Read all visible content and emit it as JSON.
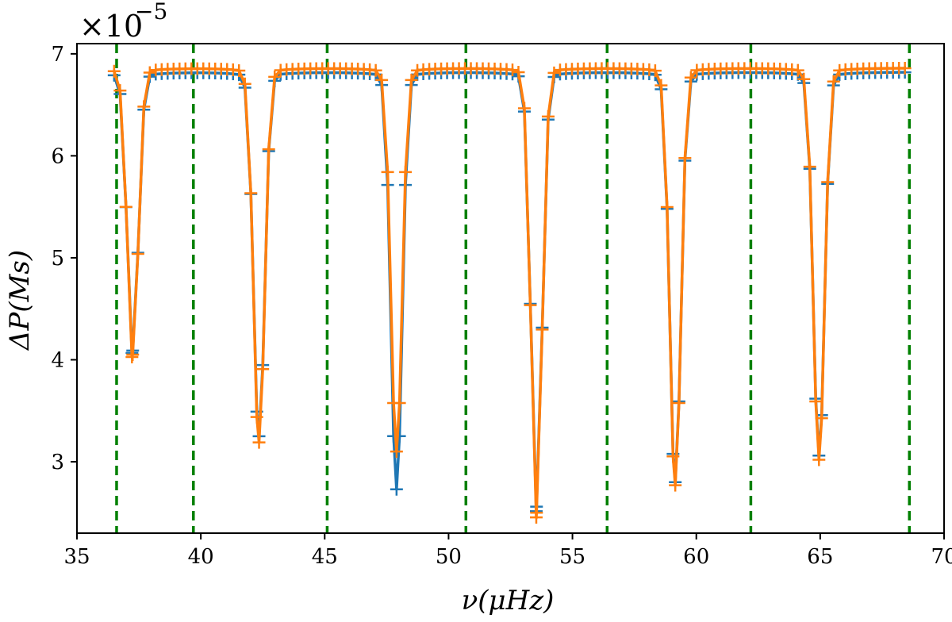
{
  "chart_data": {
    "type": "line",
    "xlabel": "ν(μHz)",
    "ylabel": "ΔP(Ms)",
    "y_scale_multiplier": "×10",
    "y_scale_exponent": "−5",
    "xlim": [
      35,
      70
    ],
    "ylim": [
      2.3,
      7.1
    ],
    "xticks": [
      35,
      40,
      45,
      50,
      55,
      60,
      65,
      70
    ],
    "xtick_labels": [
      "35",
      "40",
      "45",
      "50",
      "55",
      "60",
      "65",
      "70"
    ],
    "yticks": [
      3,
      4,
      5,
      6,
      7
    ],
    "ytick_labels": [
      "3",
      "4",
      "5",
      "6",
      "7"
    ],
    "grid": false,
    "legend": "none",
    "colors": {
      "blue": "#1f77b4",
      "orange": "#ff7f0e",
      "green": "#008000"
    },
    "vlines": [
      36.6,
      39.7,
      45.1,
      50.7,
      56.4,
      62.2,
      68.6
    ],
    "dips": [
      {
        "center": 37.25,
        "blue_min": 4.09,
        "orange_min": 4.05
      },
      {
        "center": 42.35,
        "blue_min": 3.25,
        "orange_min": 3.19
      },
      {
        "center": 47.9,
        "blue_min": 2.73,
        "orange_min": 3.1
      },
      {
        "center": 53.55,
        "blue_min": 2.56,
        "orange_min": 2.5
      },
      {
        "center": 59.15,
        "blue_min": 2.8,
        "orange_min": 2.77
      },
      {
        "center": 64.95,
        "blue_min": 3.06,
        "orange_min": 3.02
      }
    ],
    "baseline": {
      "blue": 6.82,
      "orange": 6.86
    },
    "x_range_data": [
      36.5,
      68.6
    ],
    "series": []
  }
}
